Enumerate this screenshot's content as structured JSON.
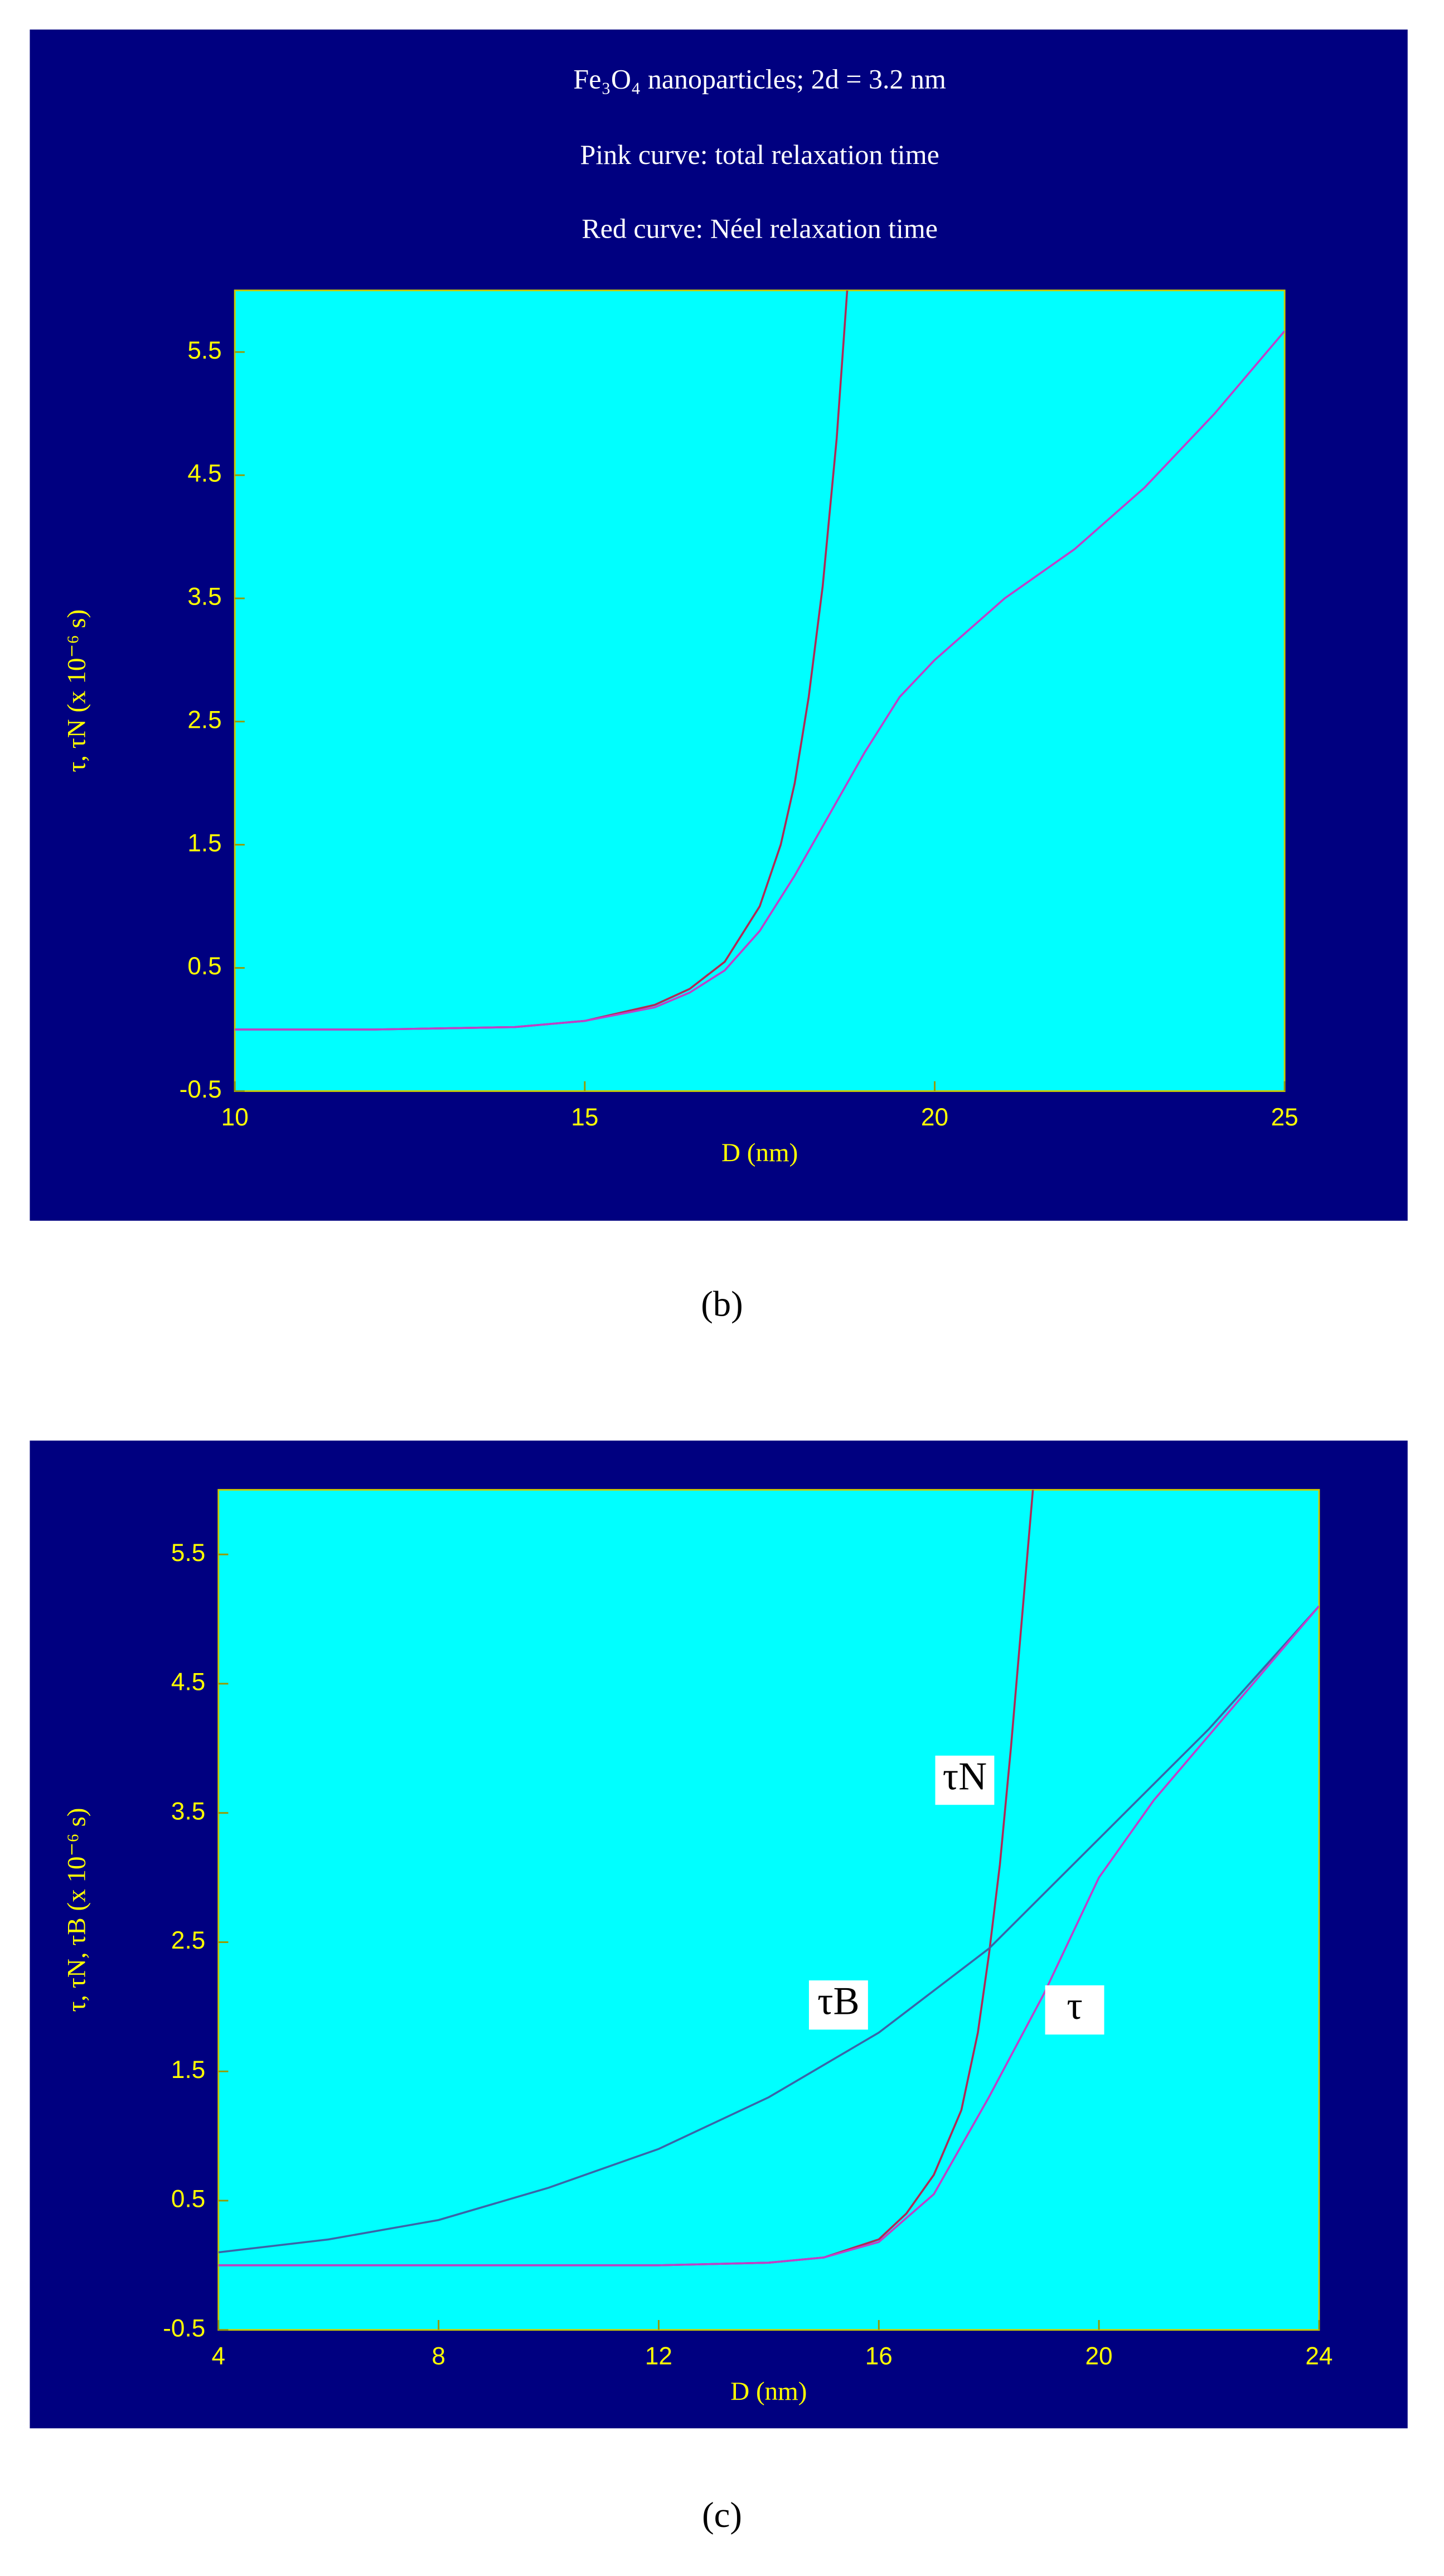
{
  "chart_data": [
    {
      "type": "line",
      "title": "Fe₃O₄ nanoparticles;  2d = 3.2 nm",
      "subtitle": [
        "Pink curve:  total relaxation time",
        "Red curve:  Néel relaxation time"
      ],
      "x_label": "D (nm)",
      "y_label": "τ, τN (x 10⁻⁶ s)",
      "xlim": [
        10,
        25
      ],
      "xticks": [
        10,
        15,
        20,
        25
      ],
      "ylim": [
        -0.5,
        6
      ],
      "yticks": [
        -0.5,
        0.5,
        1.5,
        2.5,
        3.5,
        4.5,
        5.5
      ],
      "caption": "(b)",
      "series": [
        {
          "color": "#b02a55",
          "x": [
            10,
            12,
            14,
            15,
            16,
            16.5,
            17,
            17.5,
            17.8,
            18,
            18.2,
            18.4,
            18.6,
            18.75
          ],
          "values": [
            0,
            0,
            0.02,
            0.07,
            0.2,
            0.33,
            0.55,
            1.0,
            1.5,
            2.0,
            2.7,
            3.6,
            4.8,
            6.0
          ]
        },
        {
          "color": "#c040c8",
          "x": [
            10,
            12,
            14,
            15,
            16,
            16.5,
            17,
            17.5,
            18,
            18.5,
            19,
            19.5,
            20,
            21,
            22,
            23,
            24,
            25
          ],
          "values": [
            0,
            0,
            0.02,
            0.07,
            0.18,
            0.3,
            0.48,
            0.8,
            1.25,
            1.75,
            2.25,
            2.7,
            3.0,
            3.5,
            3.9,
            4.4,
            5.0,
            5.67
          ]
        }
      ]
    },
    {
      "type": "line",
      "x_label": "D (nm)",
      "y_label": "τ, τN, τB (x 10⁻⁶ s)",
      "xlim": [
        4,
        24
      ],
      "xticks": [
        4,
        8,
        12,
        16,
        20,
        24
      ],
      "ylim": [
        -0.5,
        6
      ],
      "yticks": [
        -0.5,
        0.5,
        1.5,
        2.5,
        3.5,
        4.5,
        5.5
      ],
      "caption": "(c)",
      "series": [
        {
          "name": "τN",
          "color": "#b02a55",
          "x": [
            4,
            8,
            12,
            14,
            15,
            16,
            16.5,
            17,
            17.5,
            17.8,
            18,
            18.2,
            18.4,
            18.6,
            18.8
          ],
          "values": [
            0,
            0,
            0,
            0.02,
            0.06,
            0.2,
            0.4,
            0.7,
            1.2,
            1.8,
            2.4,
            3.1,
            4.0,
            5.0,
            6.0
          ]
        },
        {
          "name": "τB",
          "color": "#3a64a8",
          "x": [
            4,
            6,
            8,
            10,
            12,
            14,
            16,
            18,
            20,
            22,
            24
          ],
          "values": [
            0.1,
            0.2,
            0.35,
            0.6,
            0.9,
            1.3,
            1.8,
            2.45,
            3.3,
            4.15,
            5.1
          ]
        },
        {
          "name": "τ",
          "color": "#c040c8",
          "x": [
            4,
            8,
            12,
            14,
            15,
            16,
            17,
            18,
            19,
            20,
            21,
            22,
            23,
            24
          ],
          "values": [
            0,
            0,
            0,
            0.02,
            0.06,
            0.18,
            0.55,
            1.3,
            2.1,
            3.0,
            3.6,
            4.1,
            4.6,
            5.1
          ]
        }
      ]
    }
  ]
}
